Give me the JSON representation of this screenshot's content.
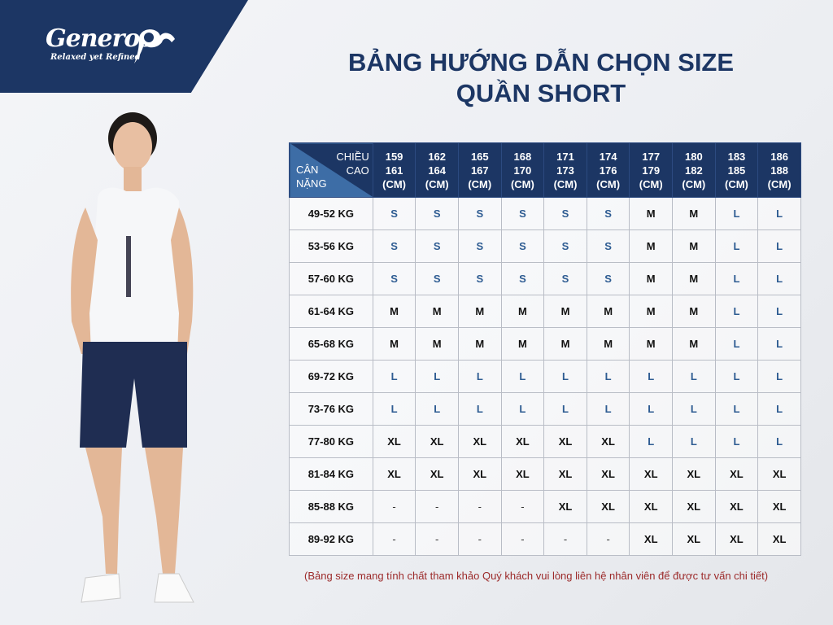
{
  "brand": {
    "name": "Generos",
    "tagline": "Relaxed yet Refined",
    "color": "#1c3664"
  },
  "title": {
    "line1": "BẢNG HƯỚNG DẪN CHỌN SIZE",
    "line2": "QUẦN SHORT"
  },
  "table": {
    "corner": {
      "top": [
        "CHIỀU",
        "CAO"
      ],
      "bottom": [
        "CÂN",
        "NẶNG"
      ]
    },
    "columns": [
      [
        "159",
        "161",
        "(CM)"
      ],
      [
        "162",
        "164",
        "(CM)"
      ],
      [
        "165",
        "167",
        "(CM)"
      ],
      [
        "168",
        "170",
        "(CM)"
      ],
      [
        "171",
        "173",
        "(CM)"
      ],
      [
        "174",
        "176",
        "(CM)"
      ],
      [
        "177",
        "179",
        "(CM)"
      ],
      [
        "180",
        "182",
        "(CM)"
      ],
      [
        "183",
        "185",
        "(CM)"
      ],
      [
        "186",
        "188",
        "(CM)"
      ]
    ],
    "rows": [
      {
        "weight": "49-52 KG",
        "sizes": [
          "S",
          "S",
          "S",
          "S",
          "S",
          "S",
          "M",
          "M",
          "L",
          "L"
        ]
      },
      {
        "weight": "53-56 KG",
        "sizes": [
          "S",
          "S",
          "S",
          "S",
          "S",
          "S",
          "M",
          "M",
          "L",
          "L"
        ]
      },
      {
        "weight": "57-60 KG",
        "sizes": [
          "S",
          "S",
          "S",
          "S",
          "S",
          "S",
          "M",
          "M",
          "L",
          "L"
        ]
      },
      {
        "weight": "61-64 KG",
        "sizes": [
          "M",
          "M",
          "M",
          "M",
          "M",
          "M",
          "M",
          "M",
          "L",
          "L"
        ]
      },
      {
        "weight": "65-68 KG",
        "sizes": [
          "M",
          "M",
          "M",
          "M",
          "M",
          "M",
          "M",
          "M",
          "L",
          "L"
        ]
      },
      {
        "weight": "69-72 KG",
        "sizes": [
          "L",
          "L",
          "L",
          "L",
          "L",
          "L",
          "L",
          "L",
          "L",
          "L"
        ]
      },
      {
        "weight": "73-76 KG",
        "sizes": [
          "L",
          "L",
          "L",
          "L",
          "L",
          "L",
          "L",
          "L",
          "L",
          "L"
        ]
      },
      {
        "weight": "77-80 KG",
        "sizes": [
          "XL",
          "XL",
          "XL",
          "XL",
          "XL",
          "XL",
          "L",
          "L",
          "L",
          "L"
        ]
      },
      {
        "weight": "81-84 KG",
        "sizes": [
          "XL",
          "XL",
          "XL",
          "XL",
          "XL",
          "XL",
          "XL",
          "XL",
          "XL",
          "XL"
        ]
      },
      {
        "weight": "85-88 KG",
        "sizes": [
          "-",
          "-",
          "-",
          "-",
          "XL",
          "XL",
          "XL",
          "XL",
          "XL",
          "XL"
        ]
      },
      {
        "weight": "89-92 KG",
        "sizes": [
          "-",
          "-",
          "-",
          "-",
          "-",
          "-",
          "XL",
          "XL",
          "XL",
          "XL"
        ]
      }
    ],
    "size_colors": {
      "S": "#2e5c92",
      "L": "#2e5c92",
      "M": "#111111",
      "XL": "#111111"
    }
  },
  "note": "(Bảng size mang tính chất tham khảo Quý khách vui lòng liên hệ nhân viên để được tư vấn chi tiết)"
}
